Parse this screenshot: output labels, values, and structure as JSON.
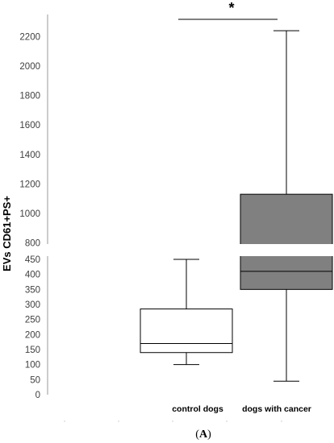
{
  "chart_data": {
    "type": "box",
    "ylabel": "EVs CD61+PS+",
    "panel_label": {
      "open": "(",
      "letter": "A",
      "close": ")"
    },
    "significance": "*",
    "axis": {
      "broken": true,
      "lower_segment": {
        "range": [
          0,
          460
        ],
        "ticks": [
          0,
          50,
          100,
          150,
          200,
          250,
          300,
          350,
          400,
          450
        ]
      },
      "upper_segment": {
        "range": [
          790,
          2320
        ],
        "ticks": [
          800,
          1000,
          1200,
          1400,
          1600,
          1800,
          2000,
          2200
        ]
      }
    },
    "categories": [
      "control dogs",
      "dogs with cancer"
    ],
    "boxes": [
      {
        "name": "control dogs",
        "min": 100,
        "q1": 140,
        "median": 170,
        "q3": 285,
        "max": 450,
        "fill": "#ffffff"
      },
      {
        "name": "dogs with cancer",
        "min": 45,
        "q1": 350,
        "median": 410,
        "q3": 1130,
        "max": 2240,
        "fill": "#808080"
      }
    ],
    "grid": false
  }
}
